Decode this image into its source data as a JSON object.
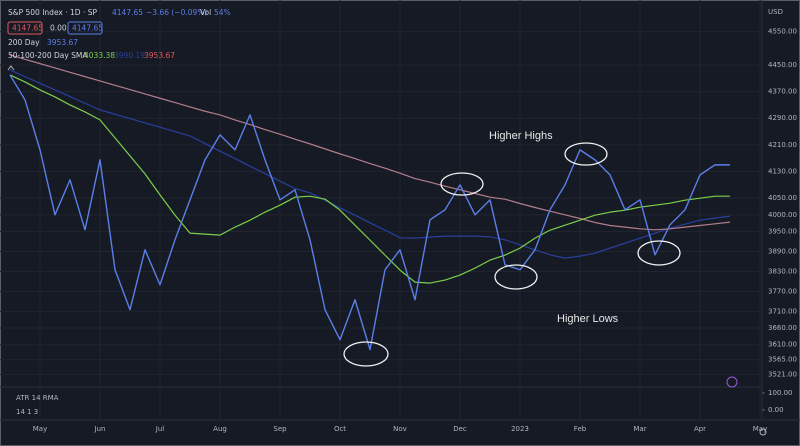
{
  "header": {
    "symbol": "S&P 500 Index · 1D · SP",
    "last": "4147.65",
    "change": "−3.66 (−0.09%)",
    "vol_label": "Vol",
    "vol_value": "54%",
    "box_bid": "4147.65",
    "box_spread": "0.00",
    "box_ask": "4147.65",
    "ind1_name": "200 Day",
    "ind1_value": "3953.67",
    "ind2_name": "50-100-200 Day SMA",
    "ind2_v1": "4033.38",
    "ind2_v2": "3990.19",
    "ind2_v3": "3953.67",
    "currency": "USD"
  },
  "chart_data": {
    "type": "line",
    "annotations": [
      "Higher Highs",
      "Higher Lows"
    ],
    "categories": [
      null,
      null,
      "May",
      null,
      null,
      null,
      "Jun",
      null,
      null,
      null,
      "Jul",
      null,
      null,
      null,
      "Aug",
      null,
      null,
      null,
      "Sep",
      null,
      null,
      null,
      "Oct",
      null,
      null,
      null,
      "Nov",
      null,
      null,
      null,
      "Dec",
      null,
      null,
      null,
      "2023",
      null,
      null,
      null,
      "Feb",
      null,
      null,
      null,
      "Mar",
      null,
      null,
      null,
      "Apr",
      null,
      null,
      null,
      "May"
    ],
    "series": [
      {
        "color": "#2a3f9e",
        "values": [
          4435,
          4415,
          4395,
          4375,
          4355,
          4335,
          4315,
          4302,
          4289,
          4276,
          4263,
          4250,
          4237,
          4214,
          4191,
          4169,
          4146,
          4124,
          4101,
          4079,
          4066,
          4044,
          4021,
          3999,
          3976,
          3954,
          3931,
          3930,
          3933,
          3936,
          3936,
          3936,
          3934,
          3925,
          3910,
          3895,
          3880,
          3870,
          3876,
          3885,
          3900,
          3915,
          3930,
          3945,
          3960,
          3972,
          3984,
          3990,
          3996,
          null,
          null
        ]
      },
      {
        "color": "#b27e8a",
        "values": [
          4480,
          4467,
          4454,
          4441,
          4428,
          4415,
          4402,
          4389,
          4376,
          4363,
          4350,
          4337,
          4324,
          4311,
          4300,
          4285,
          4271,
          4256,
          4242,
          4227,
          4213,
          4198,
          4183,
          4169,
          4154,
          4140,
          4125,
          4109,
          4098,
          4086,
          4075,
          4064,
          4053,
          4047,
          4034,
          4022,
          4011,
          4000,
          3989,
          3977,
          3968,
          3963,
          3958,
          3955,
          3958,
          3963,
          3968,
          3973,
          3978,
          null,
          null
        ]
      },
      {
        "color": "#7ccf4a",
        "values": [
          4420,
          4399,
          4375,
          4354,
          4330,
          4309,
          4285,
          4231,
          4177,
          4123,
          4060,
          3999,
          3945,
          3942,
          3939,
          3963,
          3984,
          4008,
          4029,
          4053,
          4056,
          4047,
          4014,
          3969,
          3924,
          3879,
          3834,
          3798,
          3795,
          3804,
          3819,
          3840,
          3864,
          3879,
          3900,
          3930,
          3954,
          3969,
          3984,
          3999,
          4008,
          4014,
          4023,
          4029,
          4035,
          4044,
          4050,
          4056,
          4056,
          null,
          null
        ]
      },
      {
        "color": "#5b7fe8",
        "values": [
          4420,
          4345,
          4195,
          4000,
          4105,
          3955,
          4165,
          3835,
          3715,
          3895,
          3790,
          3925,
          4045,
          4165,
          4240,
          4195,
          4300,
          4165,
          4045,
          4075,
          3925,
          3715,
          3625,
          3745,
          3595,
          3835,
          3895,
          3745,
          3985,
          4015,
          4090,
          4000,
          4045,
          3850,
          3835,
          3895,
          4015,
          4090,
          4195,
          4165,
          4120,
          4015,
          4045,
          3880,
          3970,
          4015,
          4120,
          4150,
          4150,
          null,
          null
        ]
      }
    ],
    "ylim": [
      3480,
      4600
    ],
    "yticks": [
      {
        "value": 4550,
        "label": "4550.00"
      },
      {
        "value": 4450,
        "label": "4450.00"
      },
      {
        "value": 4370,
        "label": "4370.00"
      },
      {
        "value": 4290,
        "label": "4290.00"
      },
      {
        "value": 4210,
        "label": "4210.00"
      },
      {
        "value": 4130,
        "label": "4130.00"
      },
      {
        "value": 4050,
        "label": "4050.00"
      },
      {
        "value": 4000,
        "label": "4000.00"
      },
      {
        "value": 3950,
        "label": "3950.00"
      },
      {
        "value": 3890,
        "label": "3890.00"
      },
      {
        "value": 3830,
        "label": "3830.00"
      },
      {
        "value": 3770,
        "label": "3770.00"
      },
      {
        "value": 3710,
        "label": "3710.00"
      },
      {
        "value": 3660,
        "label": "3660.00"
      },
      {
        "value": 3610,
        "label": "3610.00"
      },
      {
        "value": 3565,
        "label": "3565.00"
      },
      {
        "value": 3521,
        "label": "3521.00"
      }
    ],
    "grid": true
  },
  "lower_pane": {
    "labels": [
      "ATR 14 RMA",
      "14 1 3"
    ],
    "ylim": [
      0,
      100
    ],
    "yticks": [
      {
        "value": 100,
        "label": "100.00"
      },
      {
        "value": 0,
        "label": "0.00"
      }
    ]
  }
}
